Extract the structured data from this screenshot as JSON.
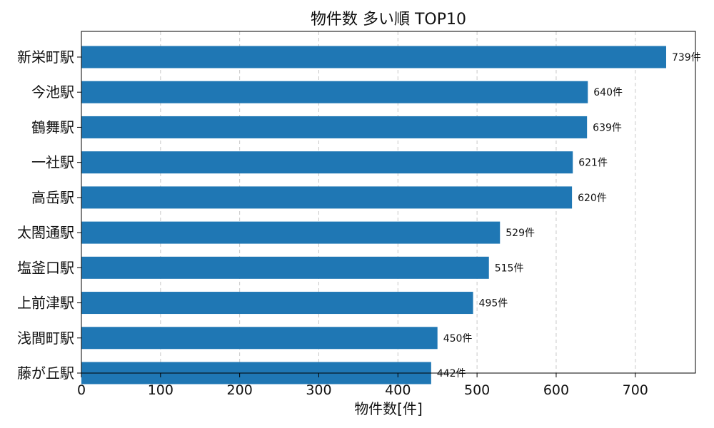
{
  "chart_data": {
    "type": "bar",
    "orientation": "horizontal",
    "title": "物件数 多い順 TOP10",
    "xlabel": "物件数[件]",
    "ylabel": "",
    "categories": [
      "新栄町駅",
      "今池駅",
      "鶴舞駅",
      "一社駅",
      "高岳駅",
      "太閤通駅",
      "塩釜口駅",
      "上前津駅",
      "浅間町駅",
      "藤が丘駅"
    ],
    "values": [
      739,
      640,
      639,
      621,
      620,
      529,
      515,
      495,
      450,
      442
    ],
    "data_labels": [
      "739件",
      "640件",
      "639件",
      "621件",
      "620件",
      "529件",
      "515件",
      "495件",
      "450件",
      "442件"
    ],
    "xticks": [
      "0",
      "100",
      "200",
      "300",
      "400",
      "500",
      "600",
      "700"
    ],
    "xlim": [
      0,
      776
    ],
    "grid": "x-dashed",
    "bar_color": "#1f77b4"
  }
}
